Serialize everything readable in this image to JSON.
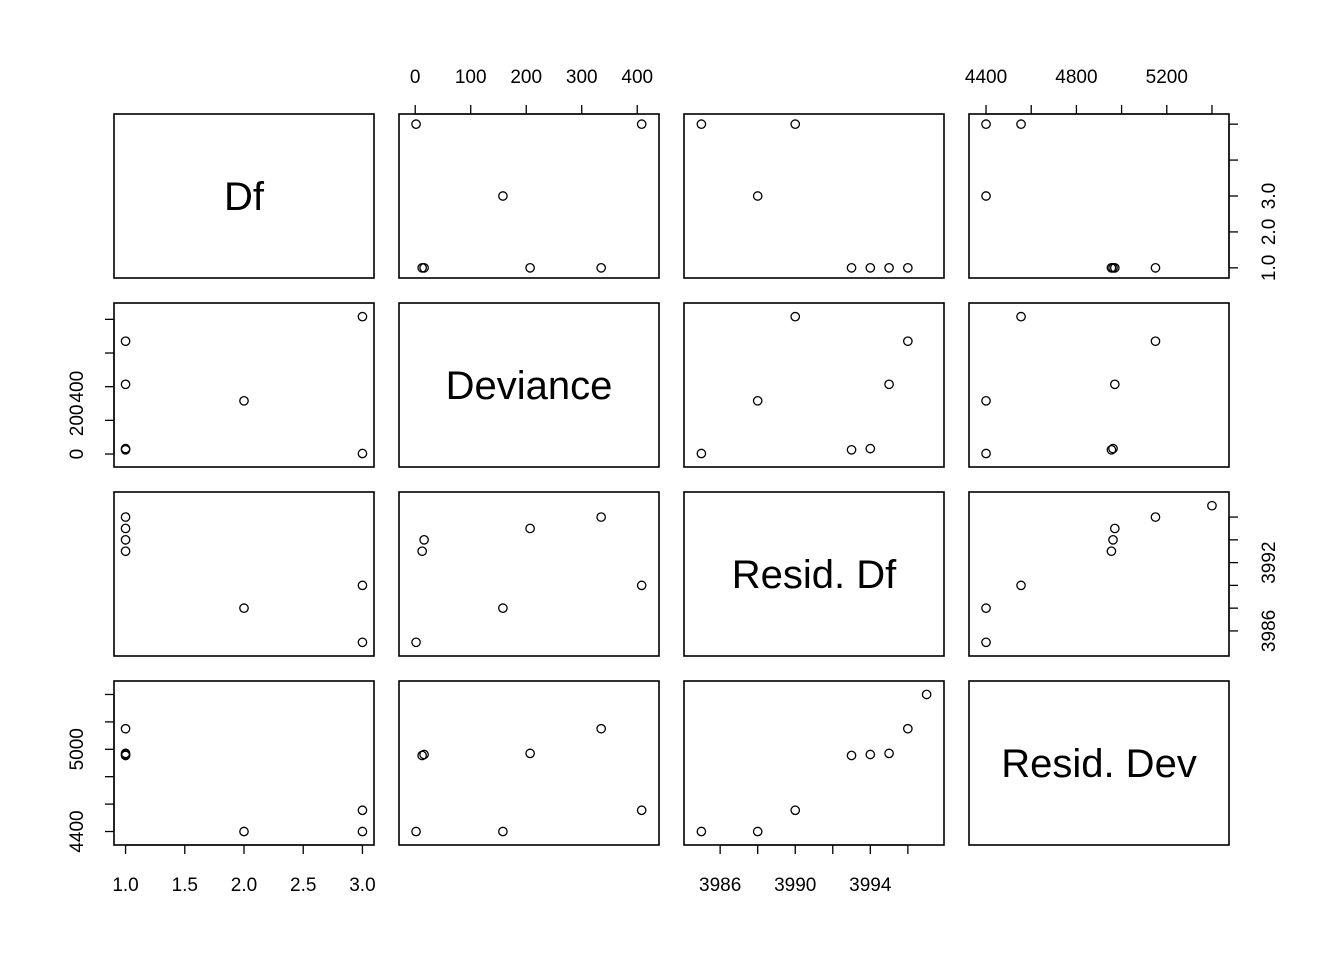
{
  "chart_data": {
    "type": "scatter",
    "subtype": "scatterplot-matrix",
    "variables": [
      "Df",
      "Deviance",
      "Resid. Df",
      "Resid. Dev"
    ],
    "observations": [
      {
        "Df": 1,
        "Deviance": 12.5,
        "Resid. Df": 3993,
        "Resid. Dev": 4955
      },
      {
        "Df": 1,
        "Deviance": 16.0,
        "Resid. Df": 3994,
        "Resid. Dev": 4962
      },
      {
        "Df": 1,
        "Deviance": 207,
        "Resid. Df": 3995,
        "Resid. Dev": 4970
      },
      {
        "Df": 1,
        "Deviance": 335,
        "Resid. Df": 3996,
        "Resid. Dev": 5150
      },
      {
        "Df": 2,
        "Deviance": 158,
        "Resid. Df": 3988,
        "Resid. Dev": 4400
      },
      {
        "Df": 3,
        "Deviance": 408,
        "Resid. Df": 3990,
        "Resid. Dev": 4555
      },
      {
        "Df": 3,
        "Deviance": 1.5,
        "Resid. Df": 3985,
        "Resid. Dev": 4400
      },
      {
        "Df": null,
        "Deviance": null,
        "Resid. Df": 3997,
        "Resid. Dev": 5400
      }
    ],
    "axes": {
      "Df": {
        "range": [
          0.97,
          3.03
        ],
        "ticks": [
          1.0,
          1.5,
          2.0,
          2.5,
          3.0
        ],
        "tick_labels": [
          "1.0",
          "1.5",
          "2.0",
          "2.5",
          "3.0"
        ],
        "side_tick_labels": [
          "1.0",
          "2.0",
          "3.0"
        ],
        "side_ticks": [
          1.0,
          1.5,
          2.0,
          2.5,
          3.0
        ]
      },
      "Deviance": {
        "range": [
          -14.8,
          424.8
        ],
        "ticks": [
          0,
          100,
          200,
          300,
          400
        ],
        "tick_labels": [
          "0",
          "100",
          "200",
          "300",
          "400"
        ],
        "side_tick_labels": [
          "0",
          "200",
          "400"
        ],
        "side_ticks": [
          0,
          100,
          200,
          300,
          400
        ]
      },
      "Resid. Df": {
        "range": [
          3984.5,
          3997.5
        ],
        "ticks": [
          3986,
          3988,
          3990,
          3992,
          3994,
          3996
        ],
        "tick_labels": [
          "3986",
          "3990",
          "3994"
        ],
        "label_ticks": [
          3986,
          3990,
          3994
        ],
        "side_tick_labels": [
          "3986",
          "3992"
        ],
        "side_label_ticks": [
          3986,
          3992
        ]
      },
      "Resid. Dev": {
        "range": [
          4360,
          5440
        ],
        "ticks": [
          4400,
          4600,
          4800,
          5000,
          5200,
          5400
        ],
        "tick_labels": [
          "4400",
          "4800",
          "5200"
        ],
        "label_ticks": [
          4400,
          4800,
          5200
        ],
        "side_tick_labels": [
          "4400",
          "5000"
        ],
        "side_label_ticks": [
          4400,
          5000
        ]
      }
    },
    "grid": false,
    "legend": "none"
  }
}
